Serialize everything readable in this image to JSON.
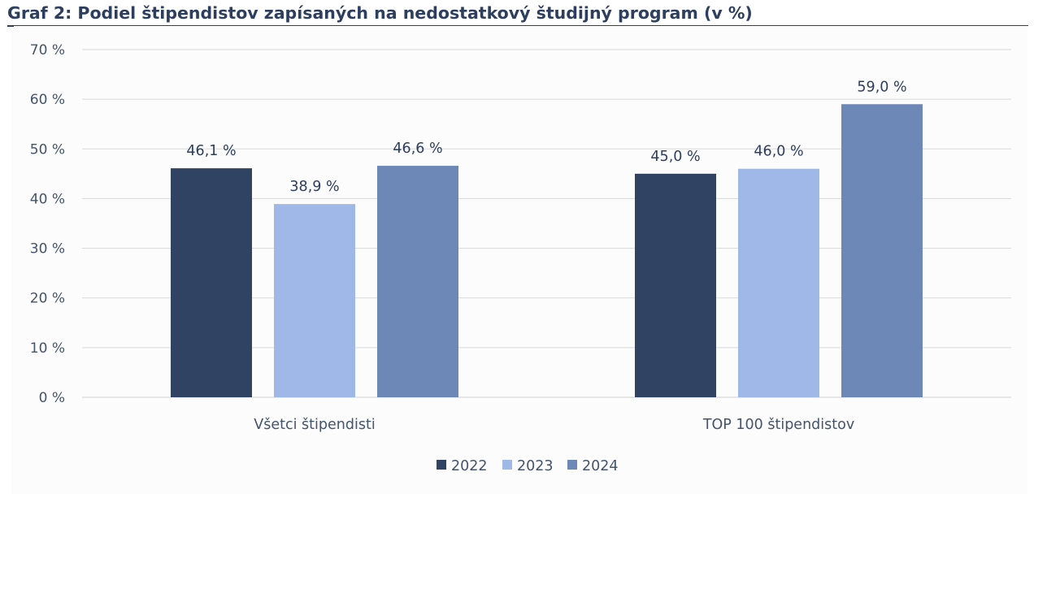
{
  "title": "Graf 2: Podiel štipendistov zapísaných na nedostatkový študijný program (v %)",
  "chart_data": {
    "type": "bar",
    "title": "Graf 2: Podiel štipendistov zapísaných na nedostatkový študijný program (v %)",
    "xlabel": "",
    "ylabel": "",
    "categories": [
      "Všetci štipendisti",
      "TOP 100 štipendistov"
    ],
    "series": [
      {
        "name": "2022",
        "values": [
          46.1,
          45.0
        ],
        "labels": [
          "46,1 %",
          "45,0 %"
        ],
        "color": "#304363"
      },
      {
        "name": "2023",
        "values": [
          38.9,
          46.0
        ],
        "labels": [
          "38,9 %",
          "46,0 %"
        ],
        "color": "#9fb8e8"
      },
      {
        "name": "2024",
        "values": [
          46.6,
          59.0
        ],
        "labels": [
          "46,6 %",
          "59,0 %"
        ],
        "color": "#6d87b7"
      }
    ],
    "ylim": [
      0,
      70
    ],
    "yticks": [
      0,
      10,
      20,
      30,
      40,
      50,
      60,
      70
    ],
    "ytick_labels": [
      "0 %",
      "10 %",
      "20 %",
      "30 %",
      "40 %",
      "50 %",
      "60 %",
      "70 %"
    ],
    "grid": true,
    "legend": "bottom-center",
    "colors": {
      "title": "#2d3e5e",
      "text": "#44546a",
      "label": "#2d3e5e",
      "grid": "#d9d9d9"
    }
  }
}
